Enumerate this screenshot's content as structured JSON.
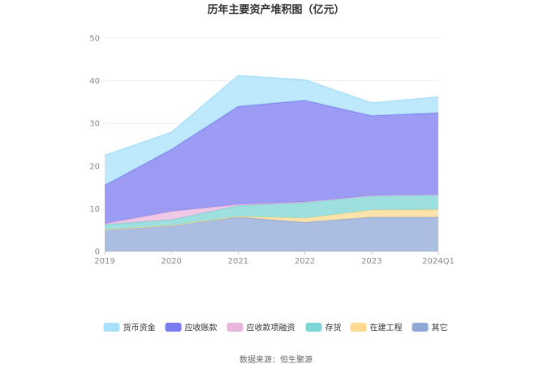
{
  "chart_data": {
    "type": "area",
    "stacked": true,
    "title": "历年主要资产堆积图（亿元）",
    "categories": [
      "2019",
      "2020",
      "2021",
      "2022",
      "2023",
      "2024Q1"
    ],
    "ylim": [
      0,
      50
    ],
    "yticks": [
      0,
      10,
      20,
      30,
      40,
      50
    ],
    "grid": true,
    "legend_position": "bottom",
    "series": [
      {
        "name": "其它",
        "color": "#8fa8d8",
        "values": [
          5.0,
          6.0,
          8.0,
          6.8,
          8.0,
          8.0
        ]
      },
      {
        "name": "在建工程",
        "color": "#fbd98f",
        "values": [
          0.1,
          0.1,
          0.2,
          1.0,
          1.7,
          1.8
        ]
      },
      {
        "name": "存货",
        "color": "#7dd6d6",
        "values": [
          1.2,
          1.3,
          2.5,
          3.6,
          3.3,
          3.4
        ]
      },
      {
        "name": "应收款项融资",
        "color": "#e8b6dc",
        "values": [
          0.2,
          2.0,
          0.3,
          0.2,
          0.1,
          0.1
        ]
      },
      {
        "name": "应收账款",
        "color": "#7b7bf0",
        "values": [
          9.0,
          14.5,
          23.0,
          23.8,
          18.7,
          19.2
        ]
      },
      {
        "name": "货币资金",
        "color": "#a8e0fb",
        "values": [
          7.0,
          4.0,
          7.2,
          4.8,
          3.0,
          3.7
        ]
      }
    ],
    "legend_order": [
      "货币资金",
      "应收账款",
      "应收款项融资",
      "存货",
      "在建工程",
      "其它"
    ]
  },
  "source_text": "数据来源：恒生聚源"
}
